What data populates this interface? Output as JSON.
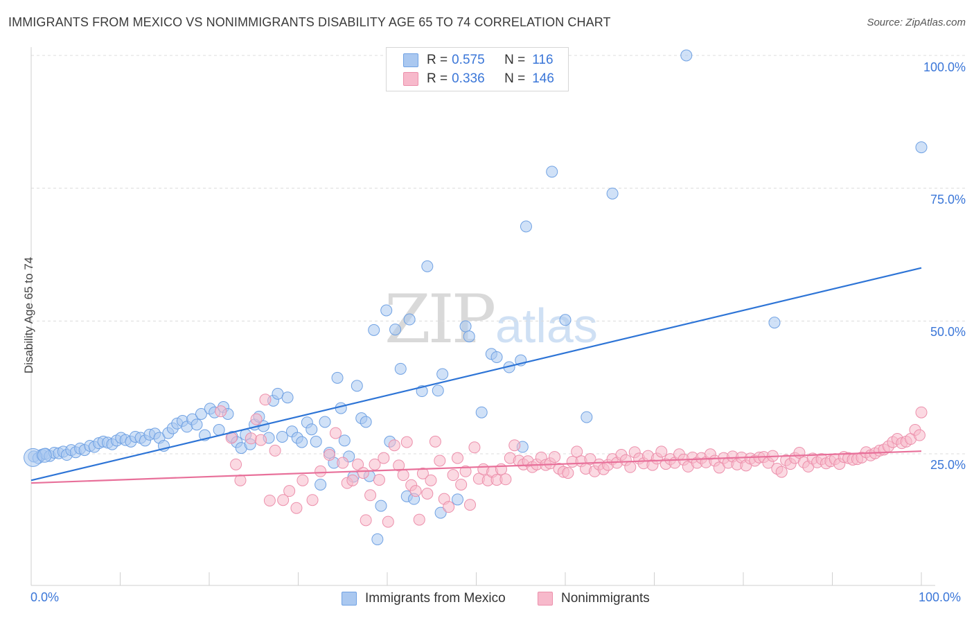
{
  "header": {
    "title": "IMMIGRANTS FROM MEXICO VS NONIMMIGRANTS DISABILITY AGE 65 TO 74 CORRELATION CHART",
    "source": "Source: ZipAtlas.com"
  },
  "watermark": {
    "zip": "ZIP",
    "atlas": "atlas"
  },
  "legend": {
    "rows": [
      {
        "r_label": "R = ",
        "r_value": "0.575",
        "n_label": "N = ",
        "n_value": "116",
        "color": "#aac8f0"
      },
      {
        "r_label": "R = ",
        "r_value": "0.336",
        "n_label": "N = ",
        "n_value": "146",
        "color": "#f7b9cb"
      }
    ]
  },
  "bottom_legend": {
    "items": [
      {
        "label": "Immigrants from Mexico",
        "color": "#aac8f0"
      },
      {
        "label": "Nonimmigrants",
        "color": "#f7b9cb"
      }
    ]
  },
  "chart_data": {
    "type": "scatter",
    "title": "IMMIGRANTS FROM MEXICO VS NONIMMIGRANTS DISABILITY AGE 65 TO 74 CORRELATION CHART",
    "ylabel": "Disability Age 65 to 74",
    "xlabel": "",
    "xlim": [
      0,
      100
    ],
    "ylim": [
      0,
      105
    ],
    "x_tick_labels": [
      "0.0%",
      "100.0%"
    ],
    "y_tick_labels": [
      "25.0%",
      "50.0%",
      "75.0%",
      "100.0%"
    ],
    "y_ticks": [
      25,
      50,
      75,
      100
    ],
    "grid": true,
    "legend_position": "top-center",
    "series": [
      {
        "name": "Immigrants from Mexico",
        "color": "#6fa1e3",
        "fill": "#aac8f0",
        "trend": {
          "x": [
            0,
            100
          ],
          "y": [
            20.0,
            60.0
          ],
          "color": "#2d74d6"
        },
        "points": [
          [
            0.3,
            24.5
          ],
          [
            0.8,
            24.2
          ],
          [
            1.2,
            24.8
          ],
          [
            1.6,
            25.0
          ],
          [
            2.1,
            24.6
          ],
          [
            2.6,
            25.2
          ],
          [
            3.1,
            25.1
          ],
          [
            3.6,
            25.4
          ],
          [
            4.0,
            24.8
          ],
          [
            4.5,
            25.7
          ],
          [
            5.0,
            25.3
          ],
          [
            5.5,
            26.0
          ],
          [
            6.0,
            25.7
          ],
          [
            6.6,
            26.5
          ],
          [
            7.1,
            26.3
          ],
          [
            7.6,
            27.0
          ],
          [
            8.1,
            27.3
          ],
          [
            8.6,
            27.1
          ],
          [
            9.1,
            26.8
          ],
          [
            9.6,
            27.5
          ],
          [
            10.1,
            28.0
          ],
          [
            10.6,
            27.6
          ],
          [
            11.2,
            27.3
          ],
          [
            11.7,
            28.2
          ],
          [
            12.3,
            28.0
          ],
          [
            12.8,
            27.5
          ],
          [
            13.3,
            28.6
          ],
          [
            13.9,
            28.8
          ],
          [
            14.4,
            28.0
          ],
          [
            14.9,
            26.5
          ],
          [
            15.4,
            28.9
          ],
          [
            15.9,
            29.8
          ],
          [
            16.4,
            30.7
          ],
          [
            17.0,
            31.2
          ],
          [
            17.5,
            30.1
          ],
          [
            18.1,
            31.5
          ],
          [
            18.6,
            30.5
          ],
          [
            19.1,
            32.5
          ],
          [
            19.5,
            28.5
          ],
          [
            20.1,
            33.5
          ],
          [
            20.6,
            32.8
          ],
          [
            21.1,
            29.5
          ],
          [
            21.6,
            33.8
          ],
          [
            22.1,
            32.5
          ],
          [
            22.6,
            28.2
          ],
          [
            23.1,
            27.2
          ],
          [
            23.6,
            26.1
          ],
          [
            24.1,
            28.6
          ],
          [
            24.6,
            26.8
          ],
          [
            25.1,
            30.5
          ],
          [
            25.6,
            32.0
          ],
          [
            26.1,
            30.2
          ],
          [
            26.7,
            28.0
          ],
          [
            27.2,
            35.0
          ],
          [
            27.7,
            36.3
          ],
          [
            28.2,
            28.2
          ],
          [
            28.8,
            35.6
          ],
          [
            29.3,
            29.2
          ],
          [
            29.9,
            28.0
          ],
          [
            30.4,
            27.2
          ],
          [
            31.0,
            30.9
          ],
          [
            31.5,
            29.6
          ],
          [
            32.0,
            27.3
          ],
          [
            32.5,
            19.2
          ],
          [
            33.0,
            31.0
          ],
          [
            33.5,
            25.2
          ],
          [
            34.0,
            23.3
          ],
          [
            34.4,
            39.3
          ],
          [
            34.8,
            33.6
          ],
          [
            35.2,
            27.5
          ],
          [
            35.7,
            24.5
          ],
          [
            36.2,
            20.7
          ],
          [
            36.6,
            37.8
          ],
          [
            37.1,
            31.7
          ],
          [
            37.6,
            31.0
          ],
          [
            38.0,
            20.8
          ],
          [
            38.5,
            48.3
          ],
          [
            38.9,
            8.9
          ],
          [
            39.3,
            15.2
          ],
          [
            39.9,
            52.0
          ],
          [
            40.3,
            27.3
          ],
          [
            40.9,
            48.4
          ],
          [
            41.5,
            41.0
          ],
          [
            42.2,
            17.0
          ],
          [
            42.5,
            50.3
          ],
          [
            43.0,
            16.5
          ],
          [
            43.9,
            36.8
          ],
          [
            44.5,
            60.3
          ],
          [
            45.7,
            36.9
          ],
          [
            46.0,
            13.9
          ],
          [
            46.2,
            40.0
          ],
          [
            47.9,
            16.4
          ],
          [
            48.8,
            49.0
          ],
          [
            49.2,
            47.1
          ],
          [
            50.6,
            32.8
          ],
          [
            51.7,
            43.8
          ],
          [
            52.3,
            43.2
          ],
          [
            53.7,
            41.3
          ],
          [
            55.0,
            42.6
          ],
          [
            55.2,
            26.3
          ],
          [
            55.6,
            67.8
          ],
          [
            58.5,
            78.1
          ],
          [
            60.0,
            50.2
          ],
          [
            62.4,
            31.9
          ],
          [
            65.3,
            74.0
          ],
          [
            73.6,
            100.0
          ],
          [
            83.5,
            49.7
          ],
          [
            100.0,
            82.7
          ]
        ]
      },
      {
        "name": "Nonimmigrants",
        "color": "#ec8fab",
        "fill": "#f7b9cb",
        "trend": {
          "x": [
            0,
            100
          ],
          "y": [
            19.5,
            25.5
          ],
          "color": "#e8709a"
        },
        "points": [
          [
            21.3,
            33.0
          ],
          [
            22.5,
            28.0
          ],
          [
            23.0,
            23.0
          ],
          [
            23.5,
            20.0
          ],
          [
            24.7,
            27.9
          ],
          [
            25.3,
            31.5
          ],
          [
            25.8,
            27.6
          ],
          [
            26.3,
            35.2
          ],
          [
            26.8,
            16.2
          ],
          [
            27.4,
            25.6
          ],
          [
            28.3,
            16.3
          ],
          [
            29.0,
            18.0
          ],
          [
            29.8,
            14.8
          ],
          [
            30.5,
            20.0
          ],
          [
            31.6,
            16.3
          ],
          [
            32.5,
            21.7
          ],
          [
            33.5,
            24.8
          ],
          [
            34.2,
            28.9
          ],
          [
            35.0,
            23.3
          ],
          [
            35.5,
            19.5
          ],
          [
            36.1,
            20.0
          ],
          [
            36.7,
            23.0
          ],
          [
            37.3,
            21.4
          ],
          [
            37.6,
            12.5
          ],
          [
            38.1,
            17.2
          ],
          [
            38.6,
            23.0
          ],
          [
            39.1,
            20.1
          ],
          [
            39.6,
            24.2
          ],
          [
            40.1,
            12.2
          ],
          [
            40.8,
            26.6
          ],
          [
            41.3,
            22.8
          ],
          [
            41.8,
            21.0
          ],
          [
            42.2,
            27.2
          ],
          [
            42.7,
            19.1
          ],
          [
            43.2,
            18.0
          ],
          [
            43.6,
            12.6
          ],
          [
            44.0,
            21.3
          ],
          [
            44.5,
            17.5
          ],
          [
            44.9,
            20.0
          ],
          [
            45.4,
            27.3
          ],
          [
            45.9,
            23.7
          ],
          [
            46.4,
            16.5
          ],
          [
            46.9,
            15.0
          ],
          [
            47.4,
            21.0
          ],
          [
            47.9,
            24.2
          ],
          [
            48.3,
            19.2
          ],
          [
            48.8,
            21.7
          ],
          [
            49.3,
            15.4
          ],
          [
            49.8,
            26.2
          ],
          [
            50.3,
            20.3
          ],
          [
            50.8,
            22.1
          ],
          [
            51.3,
            20.0
          ],
          [
            51.8,
            21.6
          ],
          [
            52.3,
            20.1
          ],
          [
            52.8,
            22.1
          ],
          [
            53.3,
            20.2
          ],
          [
            53.8,
            24.2
          ],
          [
            54.3,
            26.6
          ],
          [
            54.8,
            23.7
          ],
          [
            55.3,
            23.0
          ],
          [
            55.8,
            23.6
          ],
          [
            56.3,
            22.5
          ],
          [
            56.8,
            23.0
          ],
          [
            57.3,
            24.3
          ],
          [
            57.8,
            22.9
          ],
          [
            58.3,
            23.2
          ],
          [
            58.8,
            24.4
          ],
          [
            59.3,
            22.2
          ],
          [
            59.8,
            21.6
          ],
          [
            60.3,
            21.4
          ],
          [
            60.8,
            23.5
          ],
          [
            61.3,
            25.4
          ],
          [
            61.8,
            23.6
          ],
          [
            62.3,
            22.2
          ],
          [
            62.8,
            24.0
          ],
          [
            63.3,
            21.7
          ],
          [
            63.8,
            23.0
          ],
          [
            64.3,
            22.1
          ],
          [
            64.8,
            22.9
          ],
          [
            65.3,
            24.0
          ],
          [
            65.8,
            23.3
          ],
          [
            66.3,
            24.8
          ],
          [
            66.8,
            23.8
          ],
          [
            67.3,
            22.5
          ],
          [
            67.8,
            25.3
          ],
          [
            68.3,
            24.1
          ],
          [
            68.8,
            23.2
          ],
          [
            69.3,
            24.6
          ],
          [
            69.8,
            22.9
          ],
          [
            70.3,
            24.1
          ],
          [
            70.8,
            25.4
          ],
          [
            71.3,
            23.1
          ],
          [
            71.8,
            24.0
          ],
          [
            72.3,
            23.3
          ],
          [
            72.8,
            24.9
          ],
          [
            73.3,
            23.9
          ],
          [
            73.8,
            22.6
          ],
          [
            74.3,
            24.3
          ],
          [
            74.8,
            23.3
          ],
          [
            75.3,
            24.2
          ],
          [
            75.8,
            23.4
          ],
          [
            76.3,
            24.9
          ],
          [
            76.8,
            23.7
          ],
          [
            77.3,
            22.4
          ],
          [
            77.8,
            24.2
          ],
          [
            78.3,
            23.3
          ],
          [
            78.8,
            24.5
          ],
          [
            79.3,
            23.0
          ],
          [
            79.8,
            24.3
          ],
          [
            80.3,
            22.8
          ],
          [
            80.8,
            24.1
          ],
          [
            81.3,
            23.7
          ],
          [
            81.8,
            24.3
          ],
          [
            82.3,
            24.4
          ],
          [
            82.8,
            23.3
          ],
          [
            83.3,
            24.6
          ],
          [
            83.8,
            22.2
          ],
          [
            84.3,
            21.6
          ],
          [
            84.8,
            23.8
          ],
          [
            85.3,
            23.1
          ],
          [
            85.8,
            24.2
          ],
          [
            86.3,
            25.2
          ],
          [
            86.8,
            23.4
          ],
          [
            87.3,
            22.6
          ],
          [
            87.8,
            24.1
          ],
          [
            88.3,
            23.4
          ],
          [
            88.8,
            24.0
          ],
          [
            89.3,
            23.2
          ],
          [
            89.8,
            23.6
          ],
          [
            90.3,
            24.0
          ],
          [
            90.8,
            23.1
          ],
          [
            91.3,
            24.4
          ],
          [
            91.8,
            24.2
          ],
          [
            92.3,
            23.9
          ],
          [
            92.8,
            24.0
          ],
          [
            93.3,
            24.3
          ],
          [
            93.8,
            25.3
          ],
          [
            94.3,
            24.7
          ],
          [
            94.8,
            25.1
          ],
          [
            95.3,
            25.6
          ],
          [
            95.8,
            25.8
          ],
          [
            96.3,
            26.4
          ],
          [
            96.8,
            27.2
          ],
          [
            97.3,
            27.8
          ],
          [
            97.8,
            27.0
          ],
          [
            98.3,
            27.3
          ],
          [
            98.8,
            27.8
          ],
          [
            99.3,
            29.5
          ],
          [
            99.8,
            28.5
          ],
          [
            100.0,
            32.8
          ]
        ]
      }
    ]
  }
}
